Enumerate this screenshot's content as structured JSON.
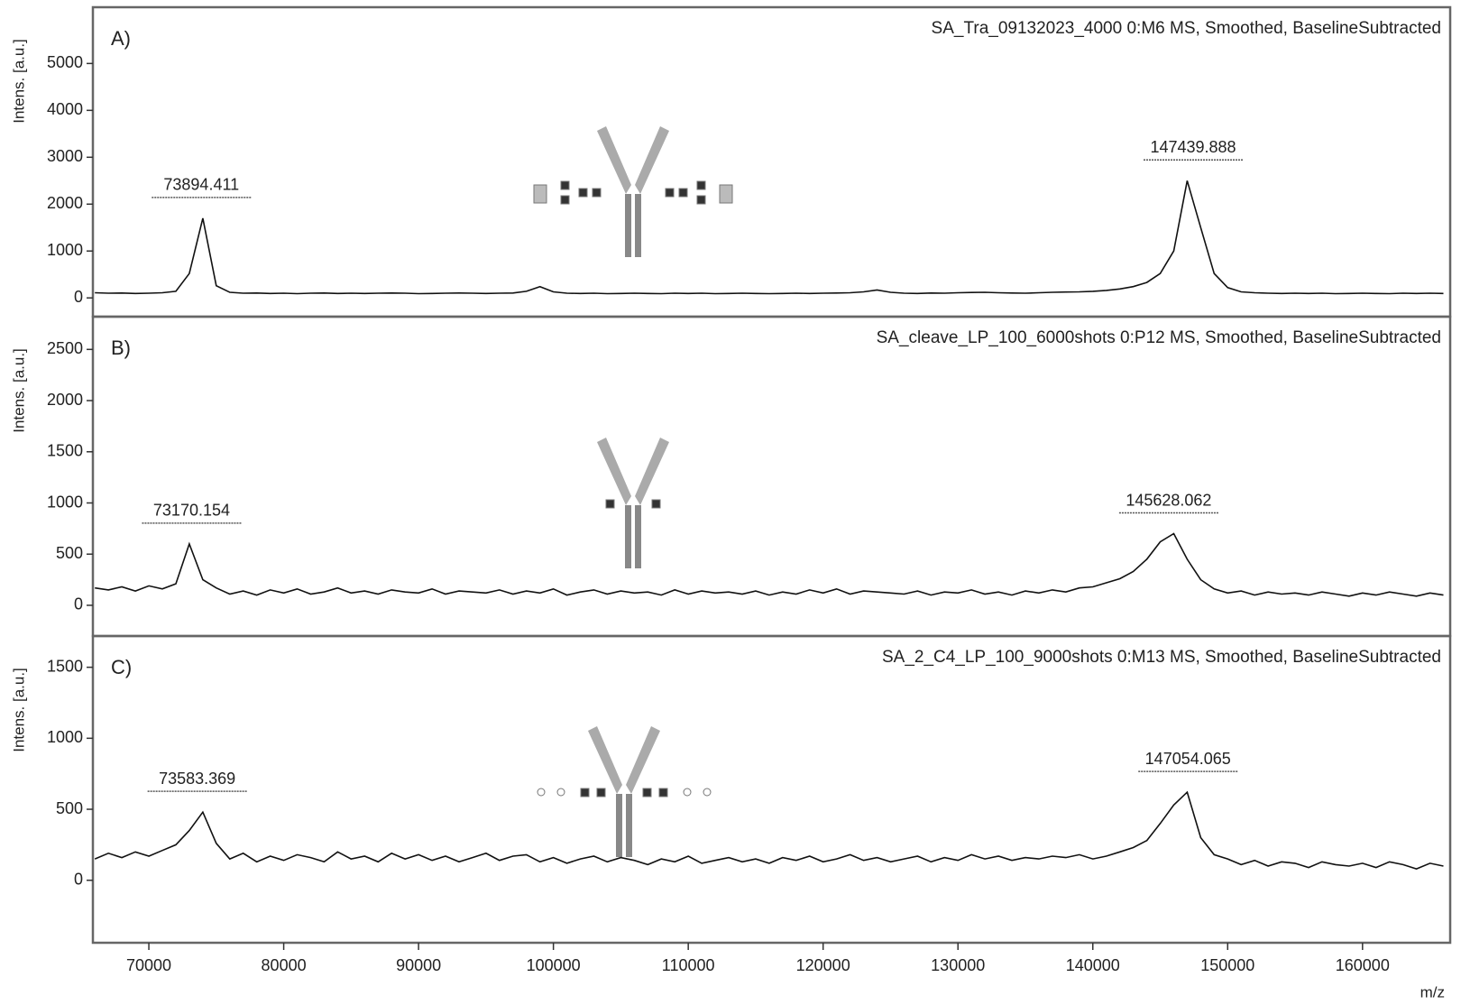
{
  "chart_data": [
    {
      "type": "line",
      "panel_label": "A)",
      "title": "SA_Tra_09132023_4000 0:M6 MS, Smoothed, BaselineSubtracted",
      "ylabel": "Intens. [a.u.]",
      "xlim": [
        65850,
        166500
      ],
      "ylim": [
        -400,
        6200
      ],
      "yticks": [
        0,
        1000,
        2000,
        3000,
        4000,
        5000
      ],
      "color": "#111111",
      "x": [
        66000,
        67000,
        68000,
        69000,
        70000,
        71000,
        72000,
        73000,
        74000,
        75000,
        76000,
        77000,
        78000,
        79000,
        80000,
        81000,
        82000,
        83000,
        84000,
        85000,
        86000,
        87000,
        88000,
        89000,
        90000,
        91000,
        92000,
        93000,
        94000,
        95000,
        96000,
        97000,
        98000,
        99000,
        100000,
        101000,
        102000,
        103000,
        104000,
        105000,
        106000,
        107000,
        108000,
        109000,
        110000,
        111000,
        112000,
        113000,
        114000,
        115000,
        116000,
        117000,
        118000,
        119000,
        120000,
        121000,
        122000,
        123000,
        124000,
        125000,
        126000,
        127000,
        128000,
        129000,
        130000,
        131000,
        132000,
        133000,
        134000,
        135000,
        136000,
        137000,
        138000,
        139000,
        140000,
        141000,
        142000,
        143000,
        144000,
        145000,
        146000,
        147000,
        148000,
        149000,
        150000,
        151000,
        152000,
        153000,
        154000,
        155000,
        156000,
        157000,
        158000,
        159000,
        160000,
        161000,
        162000,
        163000,
        164000,
        165000,
        166000
      ],
      "values": [
        110,
        100,
        105,
        95,
        100,
        110,
        140,
        520,
        1700,
        260,
        120,
        100,
        105,
        95,
        100,
        90,
        100,
        105,
        95,
        100,
        95,
        100,
        105,
        100,
        90,
        95,
        100,
        105,
        100,
        95,
        100,
        105,
        140,
        240,
        130,
        100,
        95,
        100,
        90,
        95,
        100,
        95,
        90,
        100,
        95,
        100,
        90,
        95,
        100,
        95,
        90,
        95,
        100,
        95,
        100,
        105,
        110,
        130,
        170,
        120,
        100,
        95,
        105,
        100,
        110,
        115,
        120,
        110,
        105,
        100,
        110,
        120,
        125,
        130,
        140,
        160,
        190,
        240,
        330,
        520,
        1000,
        2500,
        1500,
        520,
        220,
        130,
        110,
        100,
        95,
        100,
        95,
        100,
        90,
        95,
        100,
        95,
        90,
        100,
        95,
        100,
        95
      ],
      "peaks": [
        {
          "value": 73894.411,
          "label": "73894.411"
        },
        {
          "value": 147439.888,
          "label": "147439.888"
        }
      ]
    },
    {
      "type": "line",
      "panel_label": "B)",
      "title": "SA_cleave_LP_100_6000shots 0:P12 MS, Smoothed, BaselineSubtracted",
      "ylabel": "Intens. [a.u.]",
      "xlim": [
        65850,
        166500
      ],
      "ylim": [
        -300,
        2820
      ],
      "yticks": [
        0,
        500,
        1000,
        1500,
        2000,
        2500
      ],
      "color": "#111111",
      "x": [
        66000,
        67000,
        68000,
        69000,
        70000,
        71000,
        72000,
        73000,
        74000,
        75000,
        76000,
        77000,
        78000,
        79000,
        80000,
        81000,
        82000,
        83000,
        84000,
        85000,
        86000,
        87000,
        88000,
        89000,
        90000,
        91000,
        92000,
        93000,
        94000,
        95000,
        96000,
        97000,
        98000,
        99000,
        100000,
        101000,
        102000,
        103000,
        104000,
        105000,
        106000,
        107000,
        108000,
        109000,
        110000,
        111000,
        112000,
        113000,
        114000,
        115000,
        116000,
        117000,
        118000,
        119000,
        120000,
        121000,
        122000,
        123000,
        124000,
        125000,
        126000,
        127000,
        128000,
        129000,
        130000,
        131000,
        132000,
        133000,
        134000,
        135000,
        136000,
        137000,
        138000,
        139000,
        140000,
        141000,
        142000,
        143000,
        144000,
        145000,
        146000,
        147000,
        148000,
        149000,
        150000,
        151000,
        152000,
        153000,
        154000,
        155000,
        156000,
        157000,
        158000,
        159000,
        160000,
        161000,
        162000,
        163000,
        164000,
        165000,
        166000
      ],
      "values": [
        170,
        150,
        180,
        140,
        190,
        160,
        210,
        600,
        250,
        170,
        110,
        140,
        100,
        150,
        120,
        160,
        110,
        130,
        170,
        120,
        140,
        110,
        150,
        130,
        120,
        160,
        110,
        140,
        130,
        120,
        150,
        110,
        140,
        120,
        160,
        100,
        130,
        150,
        110,
        140,
        120,
        130,
        100,
        150,
        110,
        140,
        120,
        130,
        110,
        140,
        100,
        130,
        110,
        150,
        120,
        160,
        110,
        140,
        130,
        120,
        110,
        140,
        100,
        130,
        120,
        150,
        110,
        130,
        100,
        140,
        120,
        150,
        130,
        170,
        180,
        220,
        260,
        330,
        450,
        620,
        700,
        450,
        250,
        160,
        120,
        140,
        100,
        130,
        110,
        120,
        100,
        130,
        110,
        90,
        120,
        100,
        130,
        110,
        90,
        120,
        100
      ],
      "peaks": [
        {
          "value": 73170.154,
          "label": "73170.154"
        },
        {
          "value": 145628.062,
          "label": "145628.062"
        }
      ]
    },
    {
      "type": "line",
      "panel_label": "C)",
      "title": "SA_2_C4_LP_100_9000shots 0:M13 MS, Smoothed, BaselineSubtracted",
      "ylabel": "Intens. [a.u.]",
      "xlabel": "m/z",
      "xlim": [
        65850,
        166500
      ],
      "ylim": [
        -440,
        1720
      ],
      "yticks": [
        0,
        500,
        1000,
        1500
      ],
      "color": "#111111",
      "xticks": [
        70000,
        80000,
        90000,
        100000,
        110000,
        120000,
        130000,
        140000,
        150000,
        160000
      ],
      "x": [
        66000,
        67000,
        68000,
        69000,
        70000,
        71000,
        72000,
        73000,
        74000,
        75000,
        76000,
        77000,
        78000,
        79000,
        80000,
        81000,
        82000,
        83000,
        84000,
        85000,
        86000,
        87000,
        88000,
        89000,
        90000,
        91000,
        92000,
        93000,
        94000,
        95000,
        96000,
        97000,
        98000,
        99000,
        100000,
        101000,
        102000,
        103000,
        104000,
        105000,
        106000,
        107000,
        108000,
        109000,
        110000,
        111000,
        112000,
        113000,
        114000,
        115000,
        116000,
        117000,
        118000,
        119000,
        120000,
        121000,
        122000,
        123000,
        124000,
        125000,
        126000,
        127000,
        128000,
        129000,
        130000,
        131000,
        132000,
        133000,
        134000,
        135000,
        136000,
        137000,
        138000,
        139000,
        140000,
        141000,
        142000,
        143000,
        144000,
        145000,
        146000,
        147000,
        148000,
        149000,
        150000,
        151000,
        152000,
        153000,
        154000,
        155000,
        156000,
        157000,
        158000,
        159000,
        160000,
        161000,
        162000,
        163000,
        164000,
        165000,
        166000
      ],
      "values": [
        150,
        190,
        160,
        200,
        170,
        210,
        250,
        350,
        480,
        260,
        150,
        190,
        130,
        170,
        140,
        180,
        160,
        130,
        200,
        150,
        170,
        130,
        190,
        150,
        180,
        140,
        170,
        130,
        160,
        190,
        140,
        170,
        180,
        130,
        160,
        120,
        150,
        170,
        130,
        160,
        140,
        110,
        150,
        130,
        170,
        120,
        140,
        160,
        130,
        150,
        120,
        160,
        140,
        170,
        130,
        150,
        180,
        140,
        160,
        130,
        150,
        170,
        130,
        160,
        140,
        180,
        150,
        170,
        140,
        160,
        150,
        170,
        160,
        180,
        150,
        170,
        200,
        230,
        280,
        400,
        530,
        620,
        300,
        180,
        150,
        110,
        140,
        100,
        130,
        120,
        90,
        130,
        110,
        100,
        120,
        90,
        130,
        110,
        80,
        120,
        100
      ],
      "peaks": [
        {
          "value": 73583.369,
          "label": "73583.369"
        },
        {
          "value": 147054.065,
          "label": "147054.065"
        }
      ]
    }
  ]
}
